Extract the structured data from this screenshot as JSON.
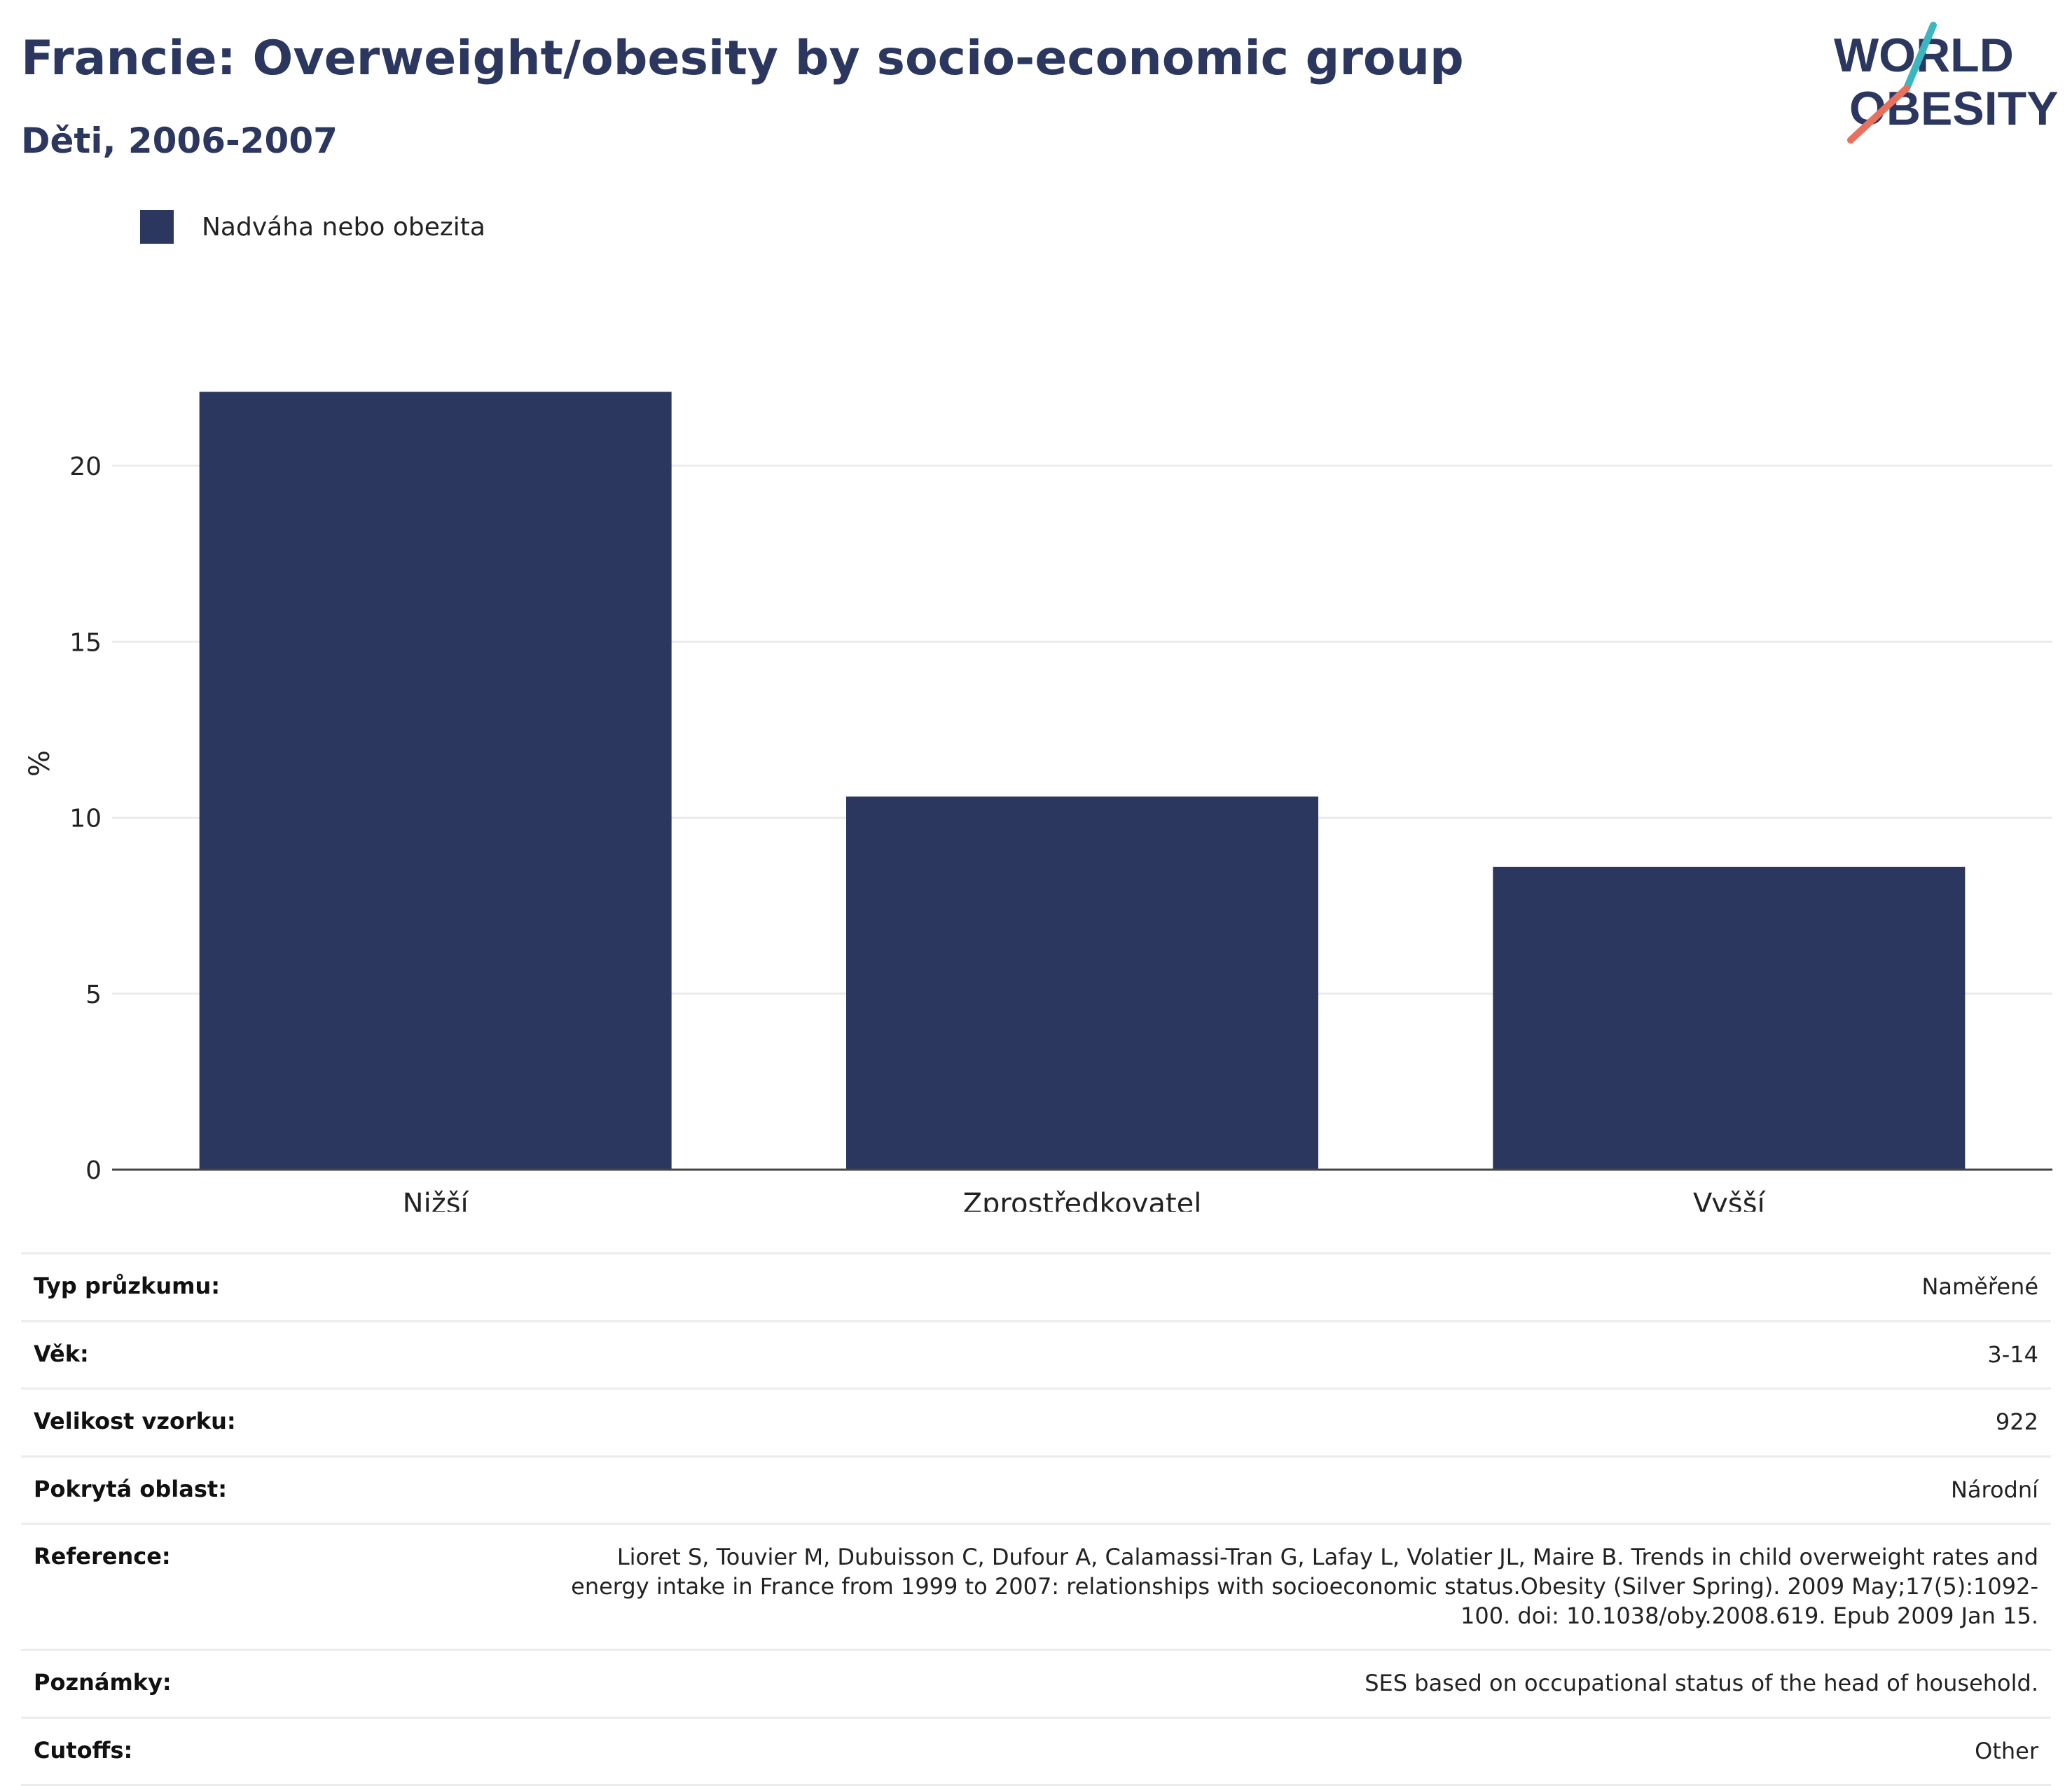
{
  "header": {
    "title": "Francie: Overweight/obesity by socio-economic group",
    "subtitle": "Děti, 2006-2007"
  },
  "logo": {
    "line1": "WORLD",
    "line2": "OBESITY"
  },
  "colors": {
    "bar": "#2b375f",
    "title": "#2b375f",
    "grid": "#ececec",
    "axis": "#444444",
    "logo_teal": "#3bb6c1",
    "logo_coral": "#e8705f"
  },
  "chart_data": {
    "type": "bar",
    "categories": [
      "Nižší",
      "Zprostředkovatel",
      "Vyšší"
    ],
    "series": [
      {
        "name": "Nadváha nebo obezita",
        "values": [
          22.1,
          10.6,
          8.6
        ]
      }
    ],
    "ylabel": "%",
    "xlabel": "",
    "ylim": [
      0,
      24
    ],
    "yticks": [
      0,
      5,
      10,
      15,
      20
    ],
    "grid": true,
    "legend_position": "top-left"
  },
  "meta": [
    {
      "label": "Typ průzkumu:",
      "value": "Naměřené"
    },
    {
      "label": "Věk:",
      "value": "3-14"
    },
    {
      "label": "Velikost vzorku:",
      "value": "922"
    },
    {
      "label": "Pokrytá oblast:",
      "value": "Národní"
    },
    {
      "label": "Reference:",
      "value": "Lioret S, Touvier M, Dubuisson C, Dufour A, Calamassi-Tran G, Lafay L, Volatier JL, Maire B. Trends in child overweight rates and energy intake in France from 1999 to 2007: relationships with socioeconomic status.Obesity (Silver Spring). 2009 May;17(5):1092-100. doi: 10.1038/oby.2008.619. Epub 2009 Jan 15."
    },
    {
      "label": "Poznámky:",
      "value": "SES based on occupational status of the head of household."
    },
    {
      "label": "Cutoffs:",
      "value": "Other"
    }
  ]
}
